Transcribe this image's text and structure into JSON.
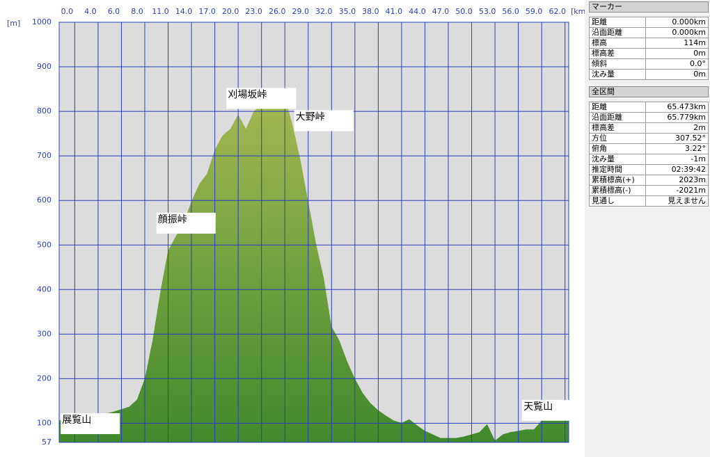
{
  "chart_data": {
    "type": "area",
    "y_unit": "[m]",
    "x_unit": "[km]",
    "xlim": [
      0,
      65.473
    ],
    "ylim": [
      57,
      1000
    ],
    "yticks": [
      57,
      100,
      200,
      300,
      400,
      500,
      600,
      700,
      800,
      900,
      1000
    ],
    "xticks": [
      {
        "value": 2,
        "label": "0.0"
      },
      {
        "value": 5,
        "label": "4.0"
      },
      {
        "value": 8,
        "label": "6.0"
      },
      {
        "value": 11,
        "label": "8.0"
      },
      {
        "value": 14,
        "label": "11.0"
      },
      {
        "value": 17,
        "label": "14.0"
      },
      {
        "value": 20,
        "label": "17.0"
      },
      {
        "value": 23,
        "label": "20.0"
      },
      {
        "value": 26,
        "label": "23.0"
      },
      {
        "value": 29,
        "label": "26.0"
      },
      {
        "value": 32,
        "label": "29.0"
      },
      {
        "value": 35,
        "label": "32.0"
      },
      {
        "value": 38,
        "label": "35.0"
      },
      {
        "value": 41,
        "label": "38.0"
      },
      {
        "value": 44,
        "label": "41.0"
      },
      {
        "value": 47,
        "label": "44.0"
      },
      {
        "value": 50,
        "label": "47.0"
      },
      {
        "value": 53,
        "label": "50.0"
      },
      {
        "value": 56,
        "label": "53.0"
      },
      {
        "value": 59,
        "label": "56.0"
      },
      {
        "value": 62,
        "label": "59.0"
      },
      {
        "value": 65,
        "label": "62.0"
      }
    ],
    "grid": true,
    "color": "#3f8a2c",
    "x": [
      0,
      1,
      3,
      4,
      5,
      7,
      9,
      10,
      11,
      12,
      13,
      14,
      15,
      16,
      17,
      18,
      19,
      20,
      21,
      22,
      23,
      24,
      25,
      26,
      27,
      28,
      29,
      30,
      31,
      32,
      33,
      34,
      35,
      36,
      37,
      38,
      39,
      40,
      41,
      42,
      43,
      44,
      45,
      46,
      47,
      48,
      49,
      50,
      51,
      52,
      53,
      54,
      55,
      56,
      57,
      58,
      59,
      60,
      61,
      62,
      63,
      64,
      65,
      65.473
    ],
    "values": [
      106,
      114,
      106,
      98,
      117,
      126,
      137,
      153,
      200,
      286,
      395,
      488,
      520,
      551,
      598,
      637,
      660,
      714,
      746,
      761,
      793,
      761,
      800,
      816,
      816,
      839,
      832,
      769,
      691,
      598,
      504,
      426,
      317,
      286,
      239,
      200,
      168,
      145,
      129,
      117,
      106,
      101,
      109,
      95,
      83,
      75,
      67,
      67,
      67,
      70,
      75,
      80,
      98,
      61,
      75,
      80,
      83,
      86,
      86,
      106,
      122,
      142,
      119,
      116
    ],
    "annotations": [
      {
        "text": "展覧山",
        "x": 0.2,
        "y": 110
      },
      {
        "text": "顔振峠",
        "x": 12.5,
        "y": 560
      },
      {
        "text": "刈場坂峠",
        "x": 21.5,
        "y": 840
      },
      {
        "text": "大野峠",
        "x": 30.2,
        "y": 790
      },
      {
        "text": "天覧山",
        "x": 59.5,
        "y": 140
      }
    ]
  },
  "panels": [
    {
      "title": "マーカー",
      "rows": [
        [
          "距離",
          "0.000km"
        ],
        [
          "沿面距離",
          "0.000km"
        ],
        [
          "標高",
          "114m"
        ],
        [
          "標高差",
          "0m"
        ],
        [
          "傾斜",
          "0.0°"
        ],
        [
          "沈み量",
          "0m"
        ]
      ]
    },
    {
      "title": "全区間",
      "rows": [
        [
          "距離",
          "65.473km"
        ],
        [
          "沿面距離",
          "65.779km"
        ],
        [
          "標高差",
          "2m"
        ],
        [
          "方位",
          "307.52°"
        ],
        [
          "俯角",
          "3.22°"
        ],
        [
          "沈み量",
          "-1m"
        ],
        [
          "推定時間",
          "02:39:42"
        ],
        [
          "累積標高(+)",
          "2023m"
        ],
        [
          "累積標高(-)",
          "-2021m"
        ],
        [
          "見通し",
          "見えません"
        ]
      ]
    }
  ]
}
